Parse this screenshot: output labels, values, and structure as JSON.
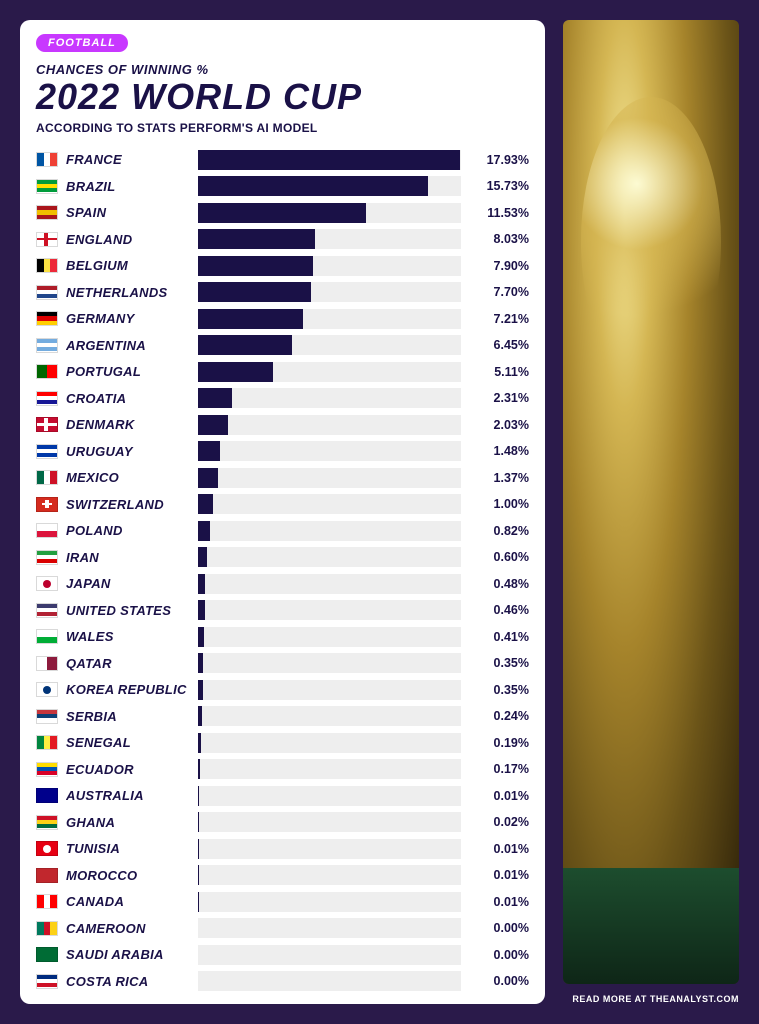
{
  "badge": "FOOTBALL",
  "subtitle1": "CHANCES OF WINNING %",
  "title": "2022 WORLD CUP",
  "subtitle2": "ACCORDING TO STATS PERFORM'S AI MODEL",
  "footer": "READ MORE AT THEANALYST.COM",
  "chart": {
    "type": "bar",
    "bar_color": "#1a1147",
    "track_color": "#eeeeee",
    "text_color": "#1a1147",
    "max_value": 18.0,
    "label_fontsize": 13,
    "value_fontsize": 12.5,
    "countries": [
      {
        "name": "FRANCE",
        "pct": 17.93,
        "flag_dir": "v",
        "flag": [
          "#0055a4",
          "#ffffff",
          "#ef4135"
        ]
      },
      {
        "name": "BRAZIL",
        "pct": 15.73,
        "flag_dir": "h",
        "flag": [
          "#009c3b",
          "#ffdf00",
          "#009c3b"
        ]
      },
      {
        "name": "SPAIN",
        "pct": 11.53,
        "flag_dir": "h",
        "flag": [
          "#aa151b",
          "#f1bf00",
          "#aa151b"
        ]
      },
      {
        "name": "ENGLAND",
        "pct": 8.03,
        "flag_dir": "cross",
        "flag": [
          "#ffffff",
          "#ce1124"
        ]
      },
      {
        "name": "BELGIUM",
        "pct": 7.9,
        "flag_dir": "v",
        "flag": [
          "#000000",
          "#fae042",
          "#ed2939"
        ]
      },
      {
        "name": "NETHERLANDS",
        "pct": 7.7,
        "flag_dir": "h",
        "flag": [
          "#ae1c28",
          "#ffffff",
          "#21468b"
        ]
      },
      {
        "name": "GERMANY",
        "pct": 7.21,
        "flag_dir": "h",
        "flag": [
          "#000000",
          "#dd0000",
          "#ffce00"
        ]
      },
      {
        "name": "ARGENTINA",
        "pct": 6.45,
        "flag_dir": "h",
        "flag": [
          "#74acdf",
          "#ffffff",
          "#74acdf"
        ]
      },
      {
        "name": "PORTUGAL",
        "pct": 5.11,
        "flag_dir": "v2",
        "flag": [
          "#006600",
          "#ff0000"
        ]
      },
      {
        "name": "CROATIA",
        "pct": 2.31,
        "flag_dir": "h",
        "flag": [
          "#ff0000",
          "#ffffff",
          "#171796"
        ]
      },
      {
        "name": "DENMARK",
        "pct": 2.03,
        "flag_dir": "cross",
        "flag": [
          "#c60c30",
          "#ffffff"
        ]
      },
      {
        "name": "URUGUAY",
        "pct": 1.48,
        "flag_dir": "h",
        "flag": [
          "#0038a8",
          "#ffffff",
          "#0038a8"
        ]
      },
      {
        "name": "MEXICO",
        "pct": 1.37,
        "flag_dir": "v",
        "flag": [
          "#006847",
          "#ffffff",
          "#ce1126"
        ]
      },
      {
        "name": "SWITZERLAND",
        "pct": 1.0,
        "flag_dir": "plus",
        "flag": [
          "#d52b1e",
          "#ffffff"
        ]
      },
      {
        "name": "POLAND",
        "pct": 0.82,
        "flag_dir": "h2",
        "flag": [
          "#ffffff",
          "#dc143c"
        ]
      },
      {
        "name": "IRAN",
        "pct": 0.6,
        "flag_dir": "h",
        "flag": [
          "#239f40",
          "#ffffff",
          "#da0000"
        ]
      },
      {
        "name": "JAPAN",
        "pct": 0.48,
        "flag_dir": "dot",
        "flag": [
          "#ffffff",
          "#bc002d"
        ]
      },
      {
        "name": "UNITED STATES",
        "pct": 0.46,
        "flag_dir": "h",
        "flag": [
          "#3c3b6e",
          "#ffffff",
          "#b22234"
        ]
      },
      {
        "name": "WALES",
        "pct": 0.41,
        "flag_dir": "h2",
        "flag": [
          "#ffffff",
          "#00ad36"
        ]
      },
      {
        "name": "QATAR",
        "pct": 0.35,
        "flag_dir": "v2",
        "flag": [
          "#ffffff",
          "#8d1b3d"
        ]
      },
      {
        "name": "KOREA REPUBLIC",
        "pct": 0.35,
        "flag_dir": "dot",
        "flag": [
          "#ffffff",
          "#003478"
        ]
      },
      {
        "name": "SERBIA",
        "pct": 0.24,
        "flag_dir": "h",
        "flag": [
          "#c6363c",
          "#0c4076",
          "#ffffff"
        ]
      },
      {
        "name": "SENEGAL",
        "pct": 0.19,
        "flag_dir": "v",
        "flag": [
          "#00853f",
          "#fdef42",
          "#e31b23"
        ]
      },
      {
        "name": "ECUADOR",
        "pct": 0.17,
        "flag_dir": "h",
        "flag": [
          "#ffdd00",
          "#0052b4",
          "#d80027"
        ]
      },
      {
        "name": "AUSTRALIA",
        "pct": 0.01,
        "flag_dir": "solid",
        "flag": [
          "#00008b"
        ]
      },
      {
        "name": "GHANA",
        "pct": 0.02,
        "flag_dir": "h",
        "flag": [
          "#ce1126",
          "#fcd116",
          "#006b3f"
        ]
      },
      {
        "name": "TUNISIA",
        "pct": 0.01,
        "flag_dir": "dot",
        "flag": [
          "#e70013",
          "#ffffff"
        ]
      },
      {
        "name": "MOROCCO",
        "pct": 0.01,
        "flag_dir": "solid",
        "flag": [
          "#c1272d"
        ]
      },
      {
        "name": "CANADA",
        "pct": 0.01,
        "flag_dir": "v",
        "flag": [
          "#ff0000",
          "#ffffff",
          "#ff0000"
        ]
      },
      {
        "name": "CAMEROON",
        "pct": 0.0,
        "flag_dir": "v",
        "flag": [
          "#007a5e",
          "#ce1126",
          "#fcd116"
        ]
      },
      {
        "name": "SAUDI ARABIA",
        "pct": 0.0,
        "flag_dir": "solid",
        "flag": [
          "#006c35"
        ]
      },
      {
        "name": "COSTA RICA",
        "pct": 0.0,
        "flag_dir": "h",
        "flag": [
          "#002b7f",
          "#ffffff",
          "#ce1126"
        ]
      }
    ]
  },
  "colors": {
    "page_bg": "#2a1a4a",
    "card_bg": "#ffffff",
    "badge_bg": "#c838ff",
    "badge_text": "#ffffff",
    "text": "#1a1147"
  }
}
